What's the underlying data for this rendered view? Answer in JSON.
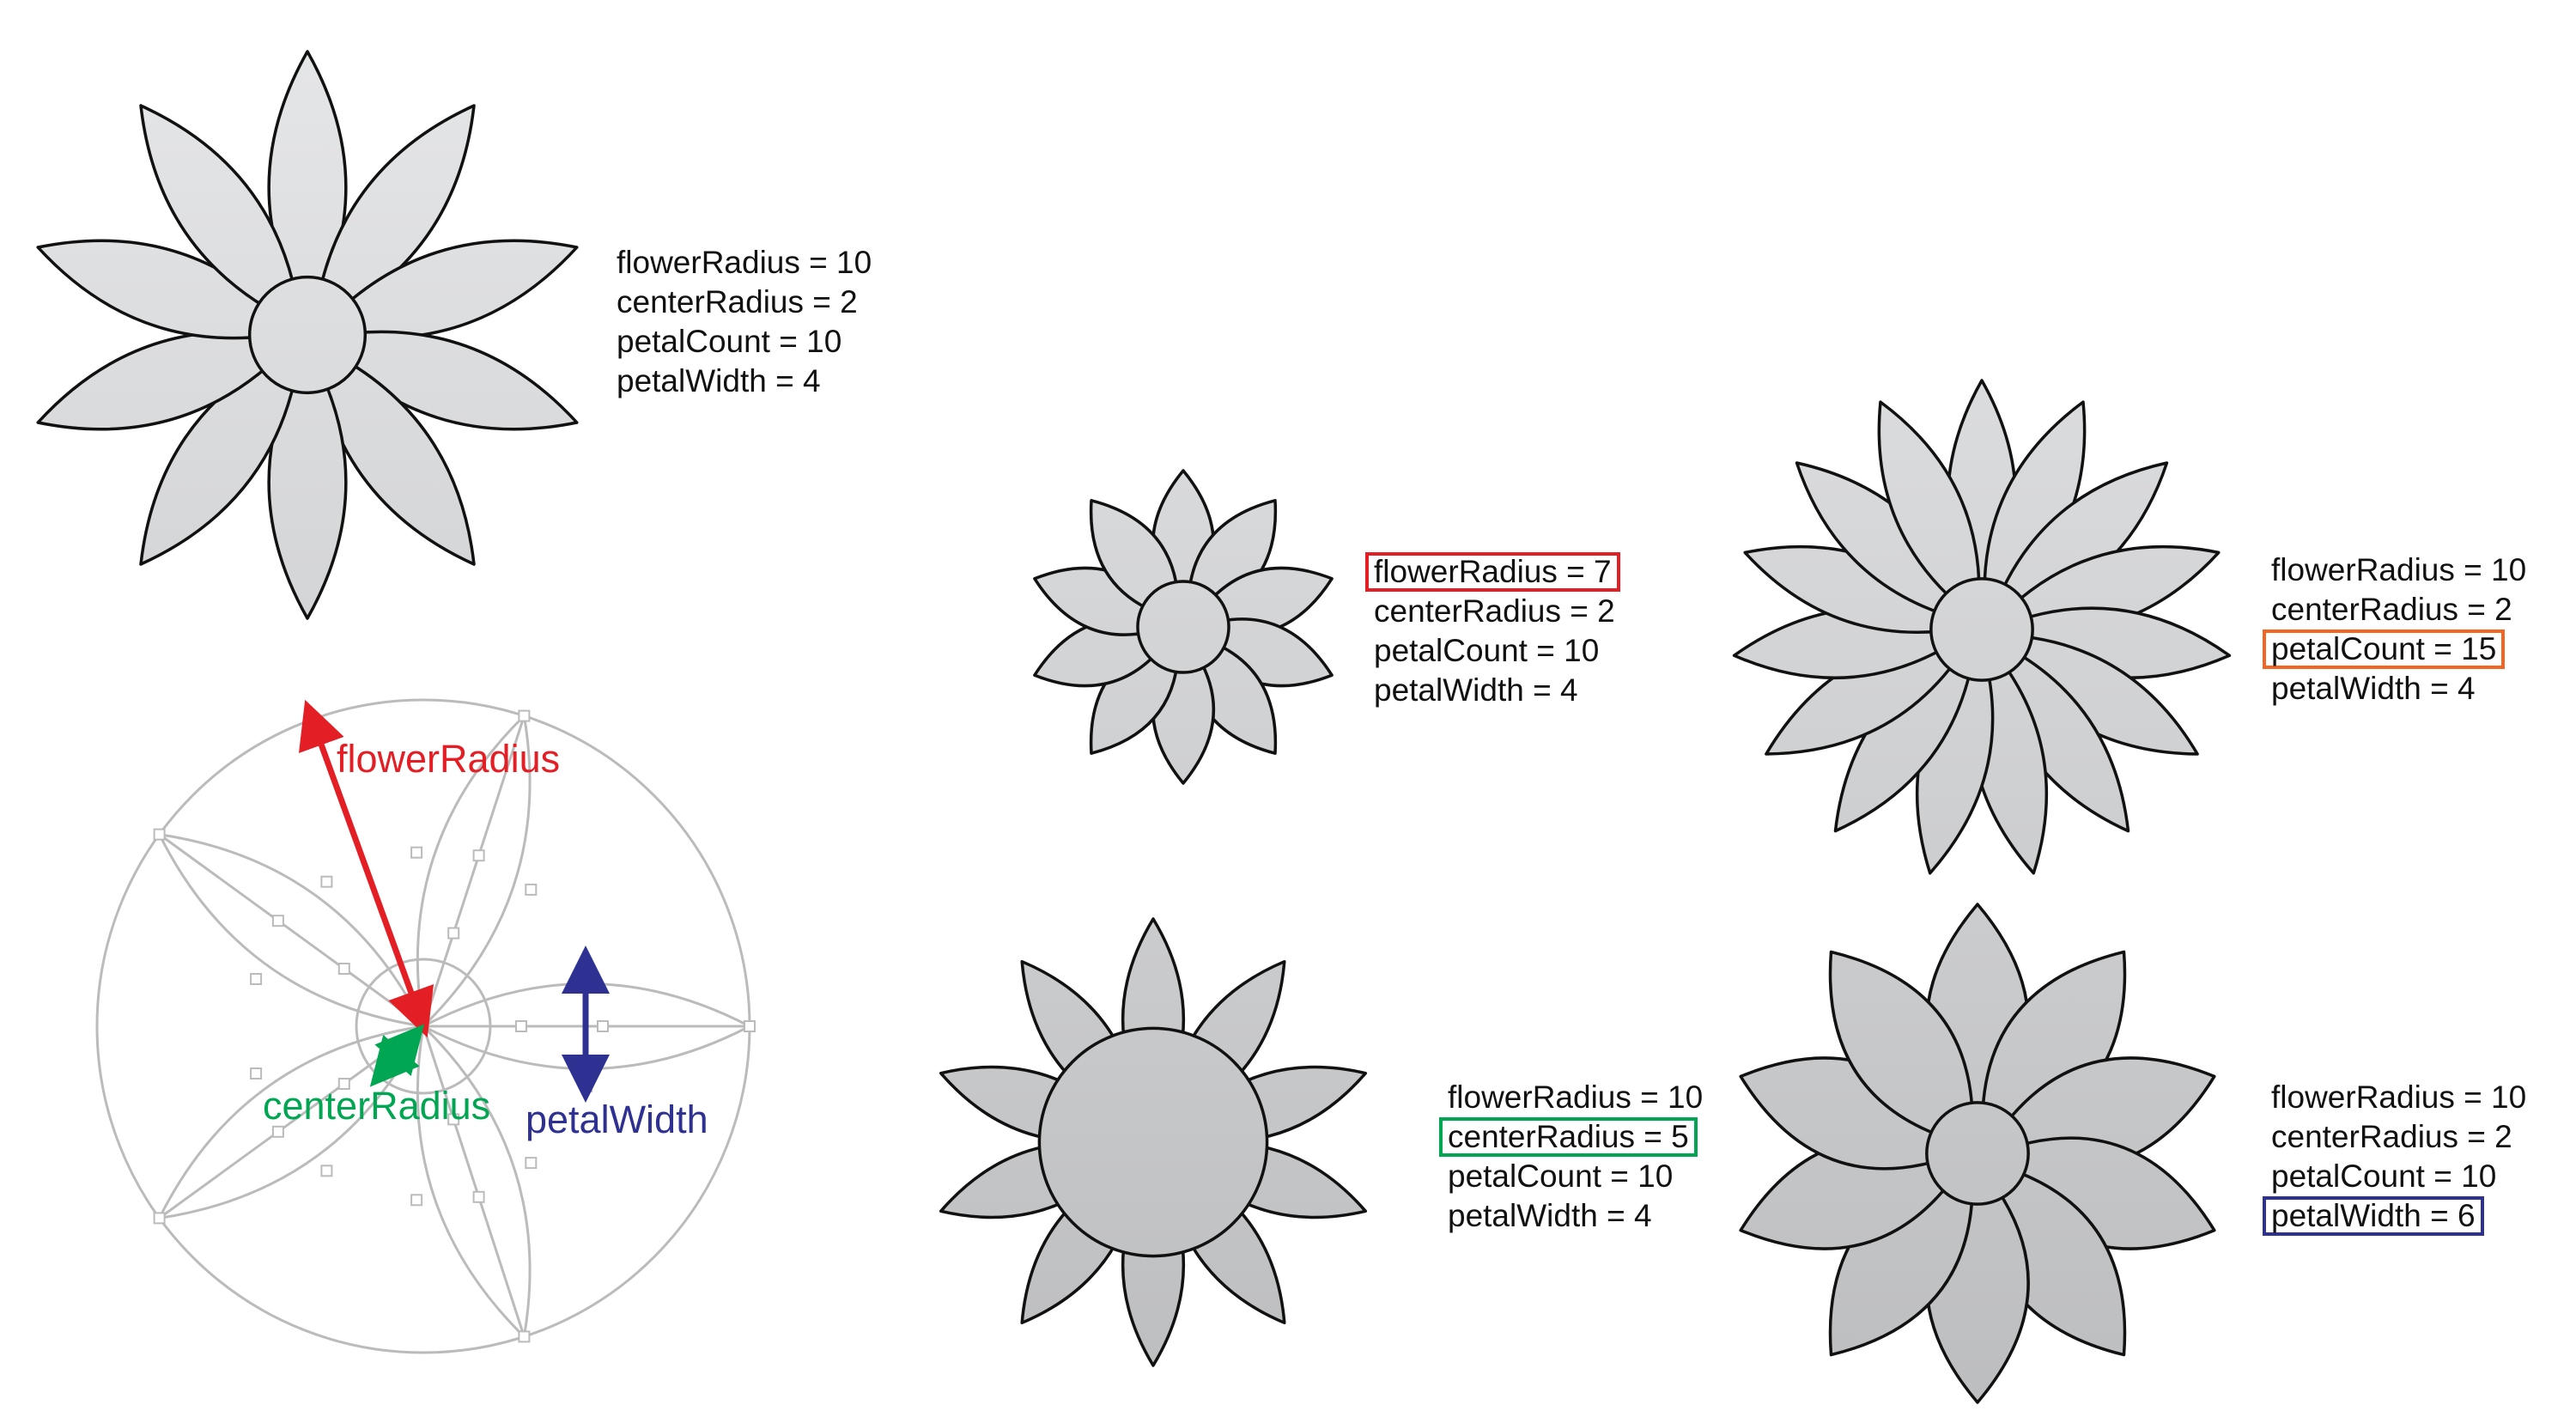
{
  "flowers": [
    {
      "id": "main",
      "flowerRadius": 10,
      "centerRadius": 2,
      "petalCount": 10,
      "petalWidth": 4,
      "highlight": null,
      "labels": [
        "flowerRadius = 10",
        "centerRadius = 2",
        "petalCount = 10",
        "petalWidth = 4"
      ]
    },
    {
      "id": "radius7",
      "flowerRadius": 7,
      "centerRadius": 2,
      "petalCount": 10,
      "petalWidth": 4,
      "highlight": 0,
      "highlight_color": "#e31e24",
      "labels": [
        "flowerRadius = 7",
        "centerRadius = 2",
        "petalCount = 10",
        "petalWidth = 4"
      ]
    },
    {
      "id": "count15",
      "flowerRadius": 10,
      "centerRadius": 2,
      "petalCount": 15,
      "petalWidth": 4,
      "highlight": 2,
      "highlight_color": "#f26522",
      "labels": [
        "flowerRadius = 10",
        "centerRadius = 2",
        "petalCount = 15",
        "petalWidth = 4"
      ]
    },
    {
      "id": "center5",
      "flowerRadius": 10,
      "centerRadius": 5,
      "petalCount": 10,
      "petalWidth": 4,
      "highlight": 1,
      "highlight_color": "#00a651",
      "labels": [
        "flowerRadius = 10",
        "centerRadius = 5",
        "petalCount = 10",
        "petalWidth = 4"
      ]
    },
    {
      "id": "width6",
      "flowerRadius": 10,
      "centerRadius": 2,
      "petalCount": 10,
      "petalWidth": 6,
      "highlight": 3,
      "highlight_color": "#2e3192",
      "labels": [
        "flowerRadius = 10",
        "centerRadius = 2",
        "petalCount = 10",
        "petalWidth = 6"
      ]
    }
  ],
  "annotations": {
    "flowerRadius": {
      "text": "flowerRadius",
      "color": "#e31e24"
    },
    "centerRadius": {
      "text": "centerRadius",
      "color": "#00a651"
    },
    "petalWidth": {
      "text": "petalWidth",
      "color": "#2e3192"
    }
  },
  "colors": {
    "petal_top": "#e6e7e9",
    "petal_bottom": "#bcbdbf",
    "outline": "#111111",
    "construction": "#bbbbbb"
  }
}
